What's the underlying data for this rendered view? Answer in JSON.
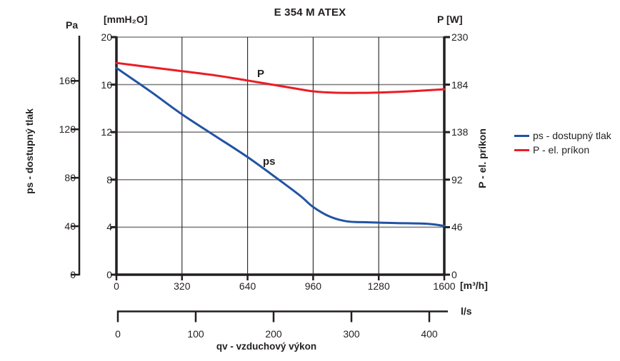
{
  "title": "E 354 M ATEX",
  "axes": {
    "pa": {
      "unit": "Pa",
      "title": "ps - dostupný tlak",
      "ticks": [
        0,
        40,
        80,
        120,
        160
      ]
    },
    "mmh2o": {
      "unit": "[mmH₂O]",
      "ticks": [
        0,
        4,
        8,
        12,
        16,
        20
      ],
      "max": 20
    },
    "watt": {
      "unit": "P [W]",
      "title": "P - el. príkon",
      "ticks": [
        0,
        46,
        92,
        138,
        184,
        230
      ],
      "max": 230
    },
    "flow": {
      "unit": "[m³/h]",
      "ticks": [
        0,
        320,
        640,
        960,
        1280,
        1600
      ],
      "max": 1600
    },
    "ls": {
      "unit": "l/s",
      "ticks": [
        0,
        100,
        200,
        300,
        400
      ]
    },
    "x_title": "qv - vzduchový výkon"
  },
  "legend": [
    {
      "label": "ps - dostupný tlak",
      "color": "#2153a4"
    },
    {
      "label": "P - el. príkon",
      "color": "#ec1c24"
    }
  ],
  "curve_labels": {
    "p": "P",
    "ps": "ps"
  },
  "colors": {
    "ps_line": "#2153a4",
    "p_line": "#ec1c24",
    "grid_gray": "#808080",
    "grid_dark": "#231f20",
    "axis_black": "#231f20"
  },
  "chart_data": {
    "type": "line",
    "title": "E 354 M ATEX",
    "xlabel": "qv - vzduchový výkon [m³/h] / l/s",
    "ylabel_left": "ps - dostupný tlak [Pa] / [mmH₂O]",
    "ylabel_right": "P - el. príkon [W]",
    "x_range_m3h": [
      0,
      1600
    ],
    "left_range_mmh2o": [
      0,
      20
    ],
    "left_range_pa": [
      0,
      196
    ],
    "right_range_w": [
      0,
      230
    ],
    "grid": "on",
    "legend_position": "right-outside",
    "series": [
      {
        "name": "ps - dostupný tlak",
        "unit": "mmH₂O",
        "axis": "left",
        "color": "#2153a4",
        "points": [
          [
            0,
            17.4
          ],
          [
            160,
            15.5
          ],
          [
            320,
            13.5
          ],
          [
            480,
            11.7
          ],
          [
            640,
            9.9
          ],
          [
            800,
            7.9
          ],
          [
            900,
            6.6
          ],
          [
            960,
            5.7
          ],
          [
            1040,
            4.9
          ],
          [
            1120,
            4.5
          ],
          [
            1200,
            4.42
          ],
          [
            1360,
            4.35
          ],
          [
            1520,
            4.28
          ],
          [
            1600,
            4.1
          ]
        ]
      },
      {
        "name": "P - el. príkon",
        "unit": "W",
        "axis": "right",
        "color": "#ec1c24",
        "points": [
          [
            0,
            205
          ],
          [
            160,
            201
          ],
          [
            320,
            197
          ],
          [
            480,
            193
          ],
          [
            640,
            188
          ],
          [
            760,
            184
          ],
          [
            880,
            180
          ],
          [
            960,
            177.5
          ],
          [
            1060,
            176.2
          ],
          [
            1180,
            176
          ],
          [
            1280,
            176.3
          ],
          [
            1440,
            177.6
          ],
          [
            1600,
            179.5
          ]
        ]
      }
    ]
  }
}
